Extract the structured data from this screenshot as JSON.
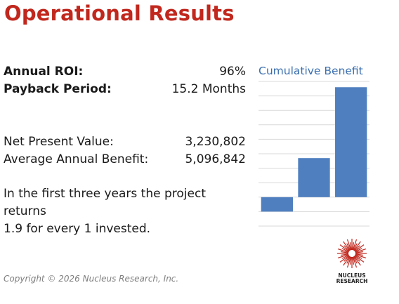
{
  "title": "Operational Results",
  "metrics": [
    {
      "label": "Annual ROI:",
      "value": "96%",
      "bold": true
    },
    {
      "label": "Payback Period:",
      "value": "15.2 Months",
      "bold": true
    },
    {
      "label": "Net Present Value:",
      "value": "3,230,802",
      "bold": false
    },
    {
      "label": "Average Annual Benefit:",
      "value": "5,096,842",
      "bold": false
    }
  ],
  "summary_line1": "In the first three years the project returns",
  "summary_line2": "1.9 for every 1 invested.",
  "copyright": "Copyright © 2026 Nucleus Research, Inc.",
  "logo": {
    "text_line1": "NUCLEUS",
    "text_line2": "RESEARCH",
    "icon": "starburst-icon",
    "color": "#c1271d"
  },
  "chart_data": {
    "type": "bar",
    "title": "Cumulative Benefit",
    "categories": [
      "",
      "",
      ""
    ],
    "values": [
      -1.0,
      2.7,
      7.6
    ],
    "ylim": [
      -2,
      8
    ],
    "grid": true,
    "bar_color": "#4f7fbf",
    "grid_color": "#d9d9d9",
    "title_color": "#3a6fb0"
  }
}
